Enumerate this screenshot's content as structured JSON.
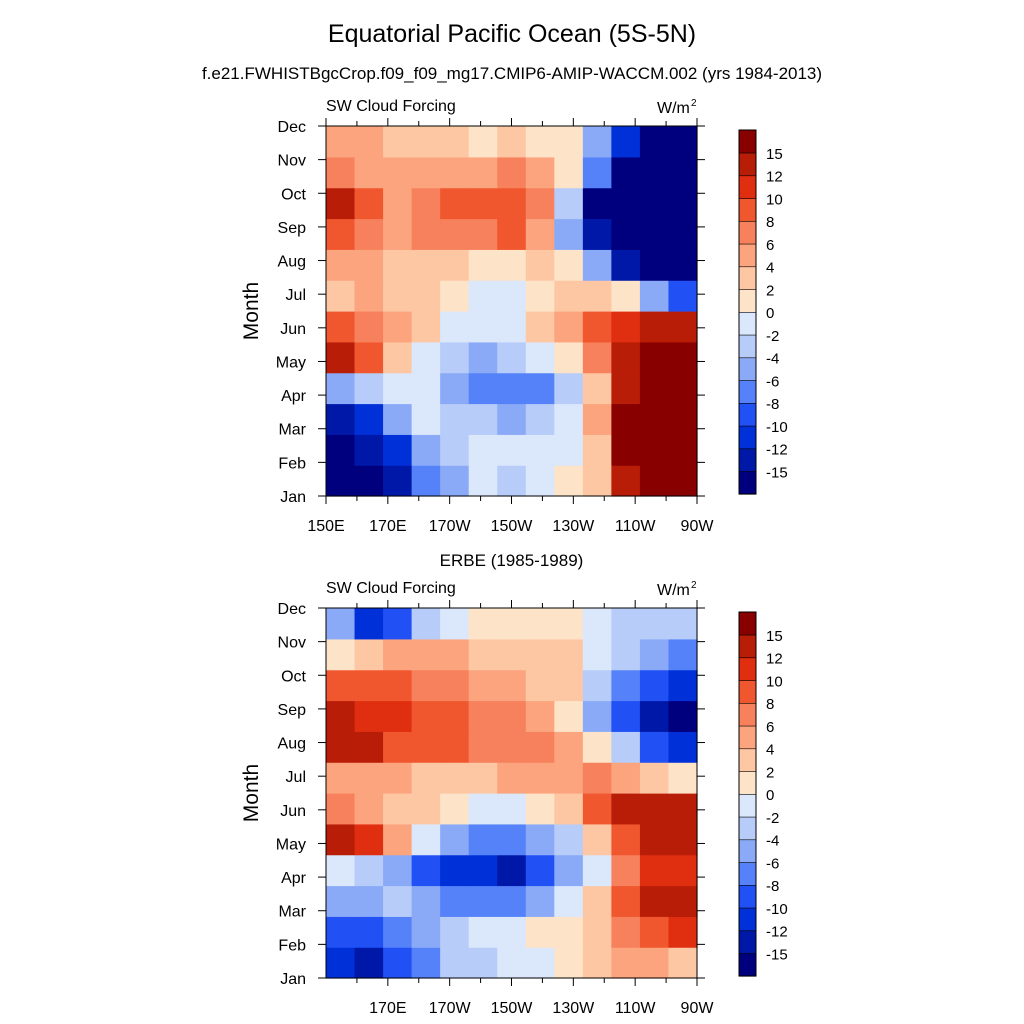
{
  "title": "Equatorial Pacific Ocean (5S-5N)",
  "subtitle": "f.e21.FWHISTBgcCrop.f09_f09_mg17.CMIP6-AMIP-WACCM.002 (yrs 1984-2013)",
  "colors": {
    "levels": [
      "#00007f",
      "#0018a8",
      "#0030d8",
      "#2150f5",
      "#5582f8",
      "#8aaaf7",
      "#b7ccf8",
      "#dbe7fb",
      "#fde4c9",
      "#fdc7a4",
      "#fba47d",
      "#f7815c",
      "#f0572f",
      "#e02e10",
      "#b81d08",
      "#880000"
    ]
  },
  "chart_data": [
    {
      "type": "heatmap",
      "panel_title": "",
      "left_label": "SW Cloud Forcing",
      "unit_label": "W/m",
      "unit_sup": "2",
      "ylabel": "Month",
      "xticks": [
        "150E",
        "170E",
        "170W",
        "150W",
        "130W",
        "110W",
        "90W"
      ],
      "yticks": [
        "Jan",
        "Feb",
        "Mar",
        "Apr",
        "May",
        "Jun",
        "Jul",
        "Aug",
        "Sep",
        "Oct",
        "Nov",
        "Dec"
      ],
      "x": [
        150,
        160,
        170,
        180,
        190,
        200,
        210,
        220,
        230,
        240,
        250,
        260,
        270
      ],
      "colorbar_labels": [
        "15",
        "12",
        "10",
        "8",
        "6",
        "4",
        "2",
        "0",
        "-2",
        "-4",
        "-6",
        "-8",
        "-10",
        "-12",
        "-15"
      ],
      "values": [
        [
          -18,
          -16,
          -13,
          -8,
          -5,
          -2,
          -3,
          -2,
          0,
          3,
          14,
          18,
          18
        ],
        [
          -17,
          -15,
          -11,
          -6,
          -3,
          -1,
          -1,
          -2,
          -2,
          3,
          15,
          18,
          18
        ],
        [
          -15,
          -12,
          -6,
          -2,
          -3,
          -4,
          -5,
          -4,
          -2,
          4,
          16,
          18,
          18
        ],
        [
          -6,
          -3,
          -1,
          -2,
          -5,
          -8,
          -8,
          -7,
          -4,
          2,
          14,
          18,
          18
        ],
        [
          14,
          9,
          3,
          -1,
          -3,
          -5,
          -4,
          -2,
          1,
          6,
          12,
          18,
          18
        ],
        [
          9,
          7,
          4,
          2,
          -1,
          -2,
          -1,
          2,
          5,
          9,
          11,
          12,
          12
        ],
        [
          3,
          4,
          2,
          2,
          0,
          -1,
          -1,
          1,
          2,
          3,
          0,
          -5,
          -10
        ],
        [
          4,
          4,
          3,
          3,
          2,
          1,
          1,
          2,
          1,
          -5,
          -13,
          -18,
          -18
        ],
        [
          9,
          7,
          4,
          6,
          7,
          7,
          8,
          5,
          -6,
          -15,
          -18,
          -18,
          -18
        ],
        [
          13,
          8,
          4,
          7,
          8,
          8,
          9,
          7,
          -4,
          -16,
          -18,
          -18,
          -18
        ],
        [
          7,
          5,
          4,
          5,
          5,
          5,
          6,
          4,
          0,
          -8,
          -17,
          -18,
          -18
        ],
        [
          5,
          4,
          3,
          3,
          2,
          1,
          2,
          1,
          0,
          -5,
          -12,
          -16,
          -18
        ]
      ]
    },
    {
      "type": "heatmap",
      "panel_title": "ERBE (1985-1989)",
      "left_label": "SW Cloud Forcing",
      "unit_label": "W/m",
      "unit_sup": "2",
      "ylabel": "Month",
      "xticks": [
        "170E",
        "170W",
        "150W",
        "130W",
        "110W",
        "90W"
      ],
      "yticks": [
        "Jan",
        "Feb",
        "Mar",
        "Apr",
        "May",
        "Jun",
        "Jul",
        "Aug",
        "Sep",
        "Oct",
        "Nov",
        "Dec"
      ],
      "x": [
        150,
        160,
        170,
        180,
        190,
        200,
        210,
        220,
        230,
        240,
        250,
        260,
        270
      ],
      "colorbar_labels": [
        "15",
        "12",
        "10",
        "8",
        "6",
        "4",
        "2",
        "0",
        "-2",
        "-4",
        "-6",
        "-8",
        "-10",
        "-12",
        "-15"
      ],
      "values": [
        [
          -12,
          -15,
          -10,
          -8,
          -4,
          -4,
          -2,
          -1,
          0,
          2,
          4,
          5,
          3
        ],
        [
          -10,
          -9,
          -7,
          -5,
          -3,
          -2,
          -1,
          0,
          1,
          3,
          6,
          9,
          10
        ],
        [
          -6,
          -5,
          -4,
          -6,
          -7,
          -8,
          -7,
          -5,
          -1,
          2,
          8,
          12,
          14
        ],
        [
          -2,
          -4,
          -6,
          -10,
          -11,
          -12,
          -13,
          -10,
          -6,
          -1,
          6,
          10,
          10
        ],
        [
          12,
          10,
          4,
          -2,
          -6,
          -8,
          -8,
          -6,
          -3,
          2,
          8,
          12,
          13
        ],
        [
          6,
          5,
          3,
          2,
          0,
          -2,
          -2,
          0,
          3,
          8,
          12,
          14,
          12
        ],
        [
          5,
          4,
          4,
          3,
          3,
          3,
          4,
          5,
          5,
          6,
          5,
          3,
          0
        ],
        [
          13,
          12,
          8,
          8,
          8,
          7,
          7,
          6,
          5,
          1,
          -4,
          -10,
          -12
        ],
        [
          13,
          11,
          10,
          9,
          8,
          7,
          6,
          4,
          1,
          -5,
          -10,
          -15,
          -16
        ],
        [
          9,
          8,
          8,
          7,
          6,
          5,
          4,
          3,
          2,
          -3,
          -8,
          -10,
          -12
        ],
        [
          1,
          3,
          5,
          4,
          4,
          3,
          3,
          2,
          2,
          -1,
          -4,
          -6,
          -8
        ],
        [
          -6,
          -12,
          -10,
          -4,
          -1,
          0,
          0,
          1,
          0,
          -1,
          -3,
          -4,
          -3
        ]
      ]
    }
  ]
}
